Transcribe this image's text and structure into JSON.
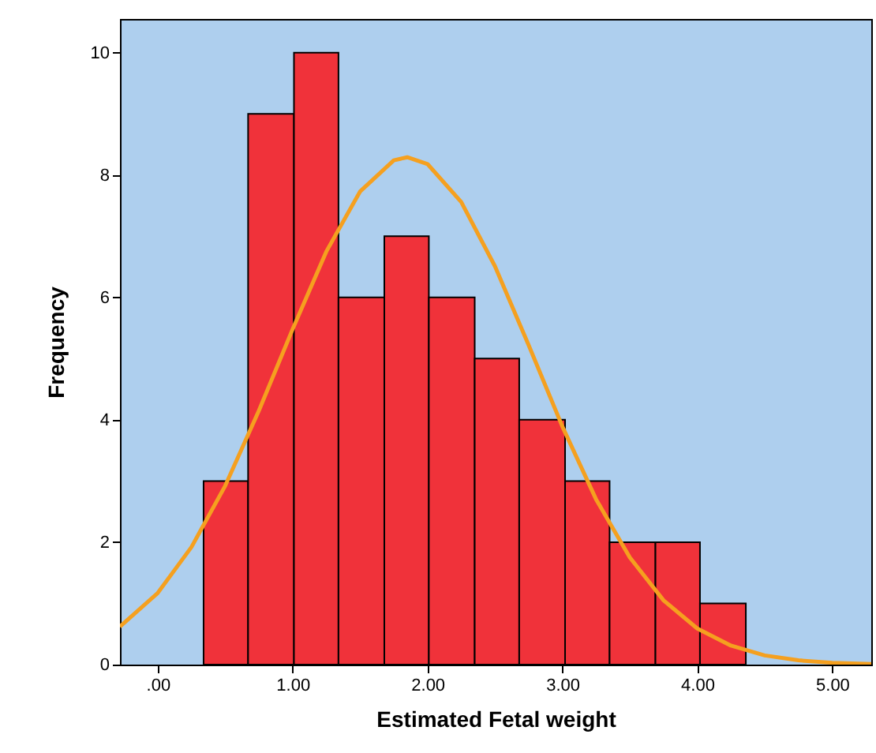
{
  "chart_data": {
    "type": "histogram",
    "xlabel": "Estimated Fetal weight",
    "ylabel": "Frequency",
    "bins": [
      0.34,
      0.67,
      1.01,
      1.34,
      1.68,
      2.01,
      2.35,
      2.68,
      3.02,
      3.35,
      3.69,
      4.02,
      4.36
    ],
    "values": [
      3,
      9,
      10,
      6,
      7,
      6,
      5,
      4,
      3,
      2,
      2,
      1
    ],
    "color": "#f0323a",
    "series": [
      {
        "type": "line",
        "color": "#f5a01f",
        "x": [
          -0.28,
          0,
          0.25,
          0.5,
          0.75,
          1.0,
          1.25,
          1.5,
          1.75,
          1.85,
          2.0,
          2.25,
          2.5,
          2.75,
          3.0,
          3.25,
          3.5,
          3.75,
          4.0,
          4.25,
          4.5,
          4.75,
          5.0,
          5.29
        ],
        "values": [
          0.62,
          1.17,
          1.92,
          2.92,
          4.15,
          5.48,
          6.75,
          7.73,
          8.24,
          8.29,
          8.18,
          7.56,
          6.51,
          5.22,
          3.89,
          2.7,
          1.75,
          1.05,
          0.59,
          0.31,
          0.15,
          0.07,
          0.03,
          0.01
        ]
      }
    ],
    "xlim": [
      -0.28,
      5.29
    ],
    "xticks": [
      {
        "value": 0,
        "label": ".00"
      },
      {
        "value": 1,
        "label": "1.00"
      },
      {
        "value": 2,
        "label": "2.00"
      },
      {
        "value": 3,
        "label": "3.00"
      },
      {
        "value": 4,
        "label": "4.00"
      },
      {
        "value": 5,
        "label": "5.00"
      }
    ],
    "ylim": [
      0,
      10.55
    ],
    "yticks": [
      0,
      2,
      4,
      6,
      8,
      10
    ]
  }
}
